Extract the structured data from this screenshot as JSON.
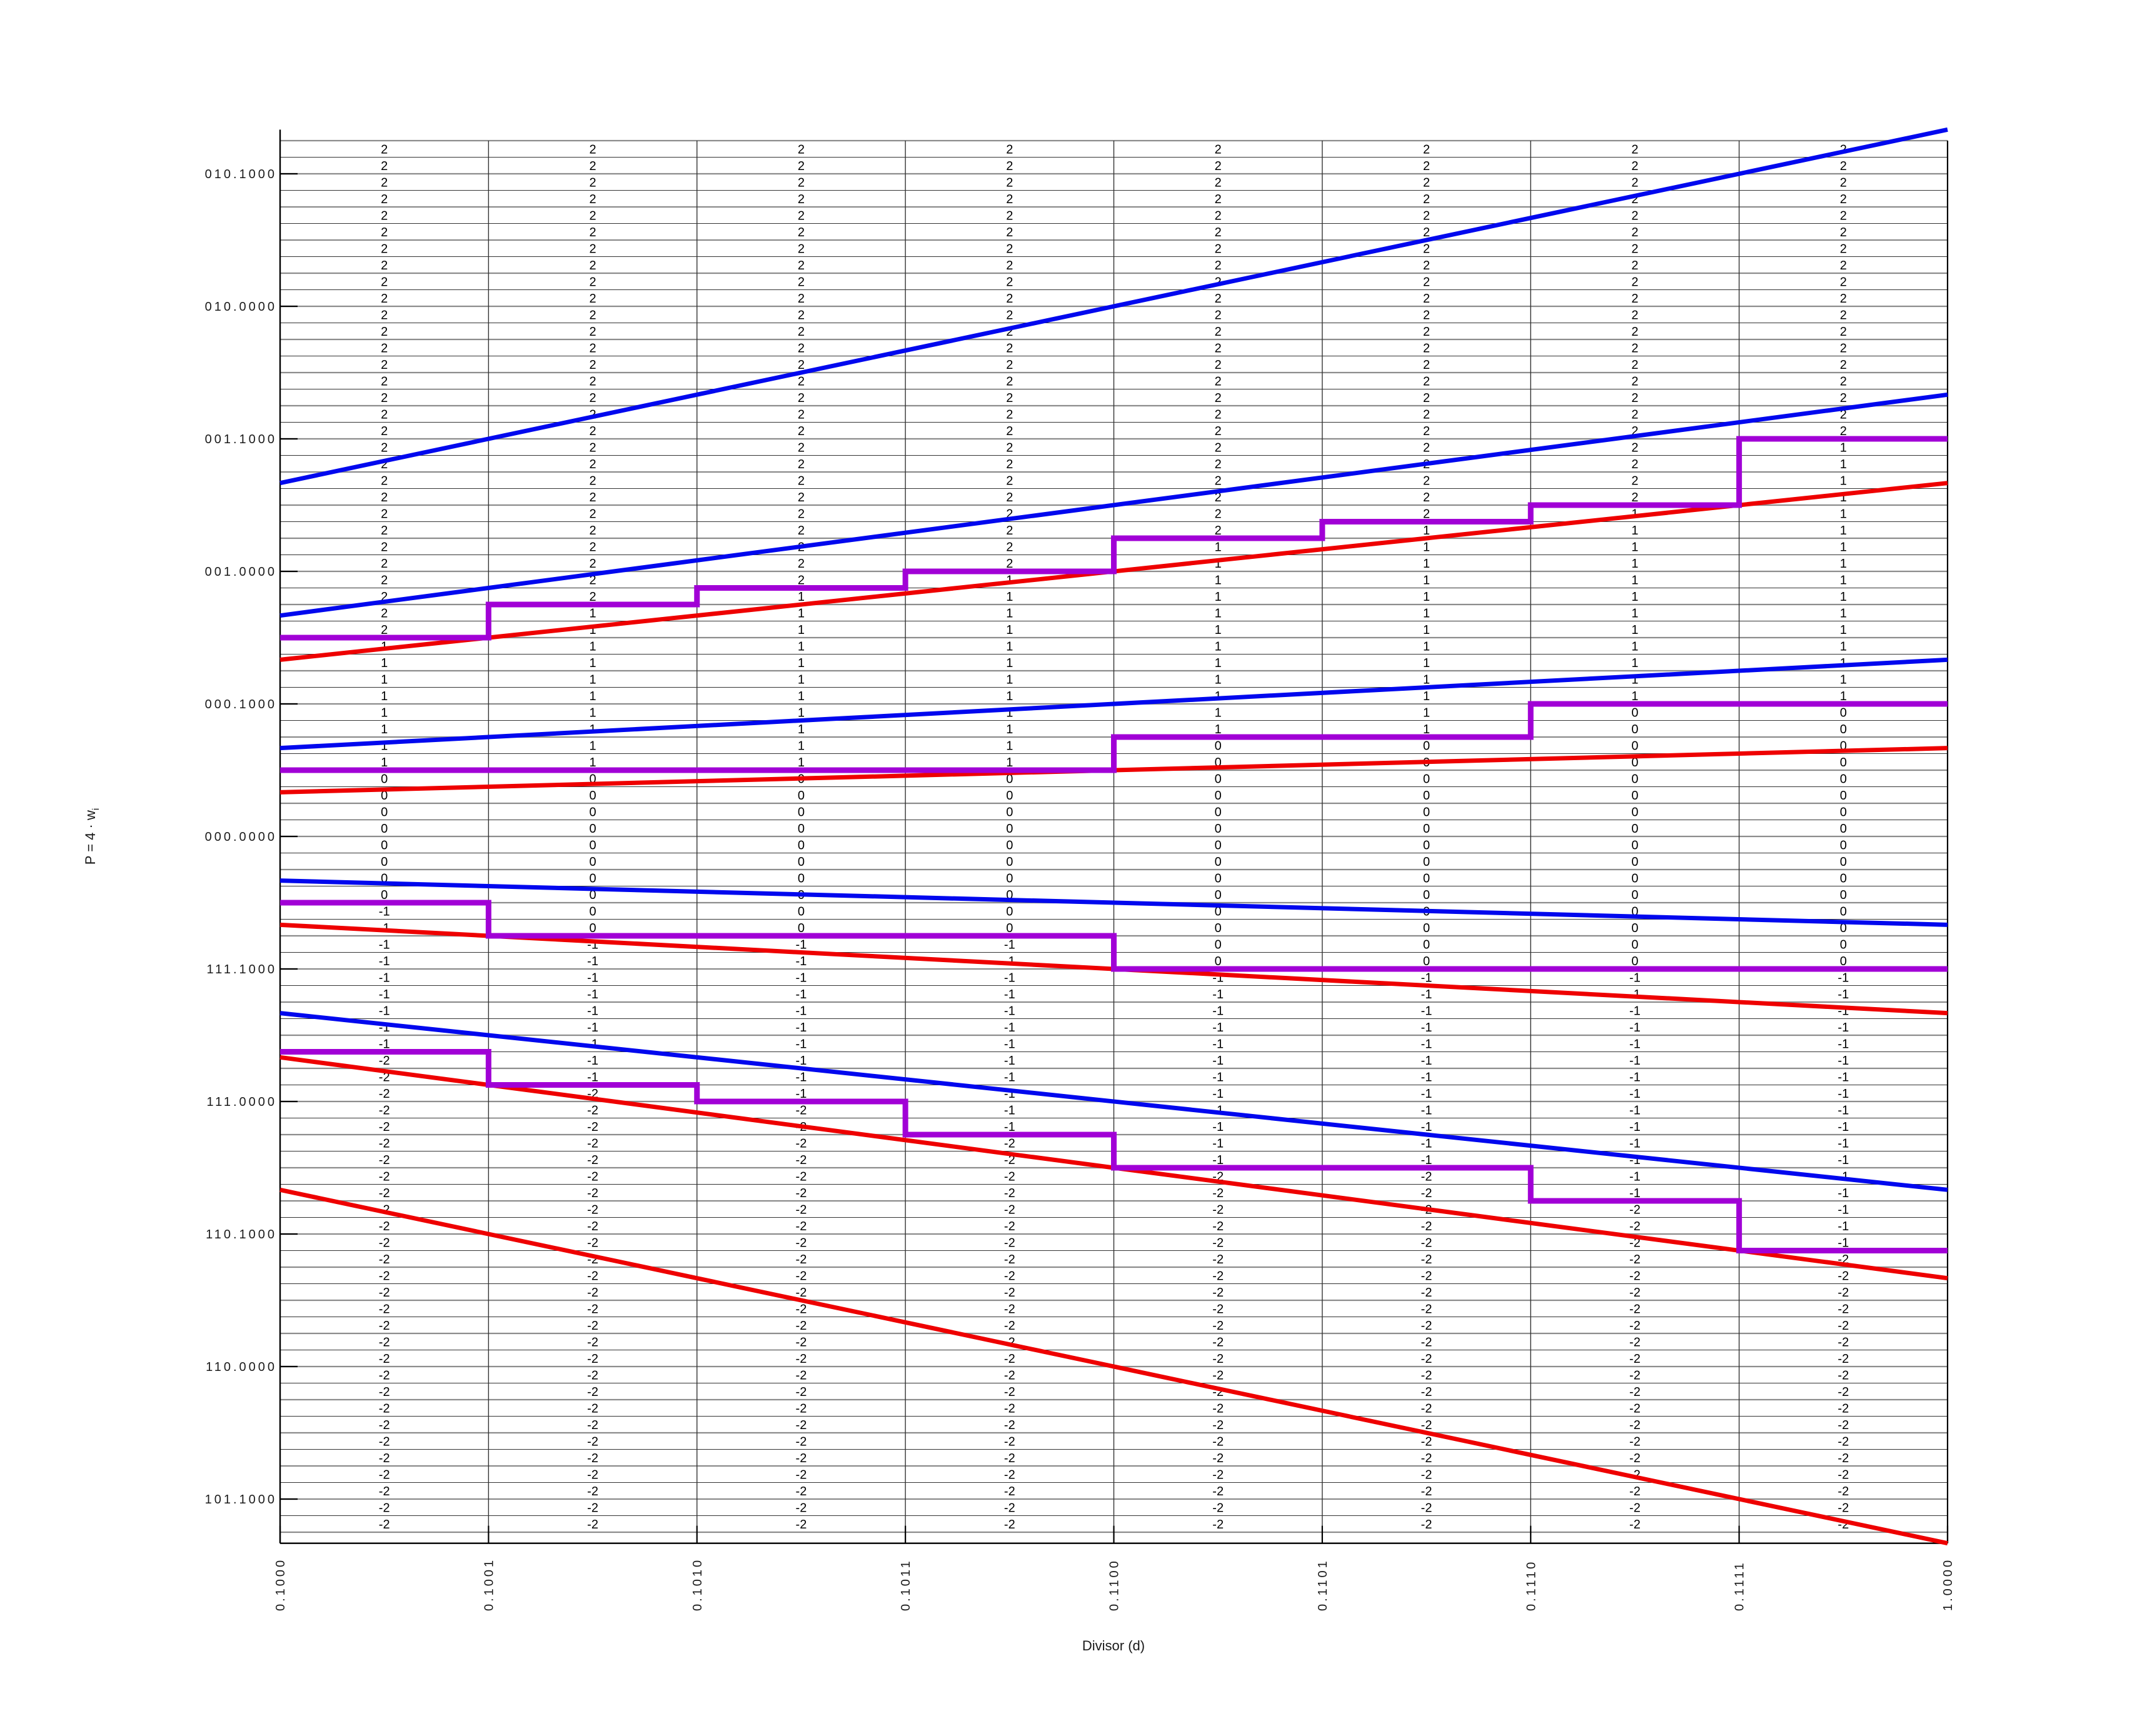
{
  "chart_data": {
    "type": "line",
    "description": "P-D diagram for radix-4 SRT division quotient digit selection: shifted partial remainder P versus divisor d, with digit selection bound lines, staircase selection thresholds and the selected quotient digit printed in every grid cell",
    "xlabel": "Divisor (d)",
    "ylabel_main": "P = 4 · w",
    "ylabel_sub": "i",
    "xlim": [
      0.5,
      1.0
    ],
    "ylim": [
      -2.6667,
      2.6667
    ],
    "grid_step": 0.0625,
    "x_ticks": [
      {
        "d": 0.5,
        "label": "0.1000"
      },
      {
        "d": 0.5625,
        "label": "0.1001"
      },
      {
        "d": 0.625,
        "label": "0.1010"
      },
      {
        "d": 0.6875,
        "label": "0.1011"
      },
      {
        "d": 0.75,
        "label": "0.1100"
      },
      {
        "d": 0.8125,
        "label": "0.1101"
      },
      {
        "d": 0.875,
        "label": "0.1110"
      },
      {
        "d": 0.9375,
        "label": "0.1111"
      },
      {
        "d": 1.0,
        "label": "1.0000"
      }
    ],
    "y_ticks": [
      {
        "p": 2.5,
        "label": "010.1000"
      },
      {
        "p": 2.0,
        "label": "010.0000"
      },
      {
        "p": 1.5,
        "label": "001.1000"
      },
      {
        "p": 1.0,
        "label": "001.0000"
      },
      {
        "p": 0.5,
        "label": "000.1000"
      },
      {
        "p": 0.0,
        "label": "000.0000"
      },
      {
        "p": -0.5,
        "label": "111.1000"
      },
      {
        "p": -1.0,
        "label": "111.0000"
      },
      {
        "p": -1.5,
        "label": "110.1000"
      },
      {
        "p": -2.0,
        "label": "110.0000"
      },
      {
        "p": -2.5,
        "label": "101.1000"
      }
    ],
    "upper_bound_lines": {
      "color": "#0008ee",
      "formula": "U_k(d) = (k + 2/3)·d for k = 2,1,0,-1,-2",
      "slopes": [
        2.66667,
        1.66667,
        0.66667,
        -0.33333,
        -1.33333
      ]
    },
    "lower_bound_lines": {
      "color": "#ee0000",
      "formula": "L_k(d) = (k - 2/3)·d for k = 2,1,0,-1,-2",
      "slopes": [
        1.33333,
        0.33333,
        -0.66667,
        -1.66667,
        -2.66667
      ]
    },
    "selection_staircases": {
      "color": "#a100d6",
      "column_edges_d": [
        0.5,
        0.5625,
        0.625,
        0.6875,
        0.75,
        0.8125,
        0.875,
        0.9375,
        1.0
      ],
      "thresholds_sixteenths": {
        "digit2_vs_1": [
          12,
          14,
          15,
          16,
          18,
          19,
          20,
          24
        ],
        "digit1_vs_0": [
          4,
          4,
          4,
          4,
          6,
          6,
          8,
          8
        ],
        "digit0_vs_minus1": [
          -4,
          -6,
          -6,
          -6,
          -8,
          -8,
          -8,
          -8
        ],
        "digitm1_vs_minus2": [
          -13,
          -15,
          -16,
          -18,
          -20,
          -20,
          -22,
          -25
        ]
      }
    },
    "cell_digits": {
      "possible_values": [
        2,
        1,
        0,
        -1,
        -2
      ],
      "row_lower_edge_sixteenths_min": -42,
      "row_lower_edge_sixteenths_max": 41,
      "rule": "a cell whose lower edge is E/16 in column c shows 2 if E>=digit2_vs_1[c], else 1 if E>=digit1_vs_0[c], else 0 if E>=digit0_vs_minus1[c], else -1 if E>=digitm1_vs_minus2[c], else -2"
    },
    "colors": {
      "background": "#ffffff",
      "axis": "#000000",
      "grid_major": "#8c8c8c",
      "grid_minor": "#333333",
      "digit_text": "#000000",
      "tick_text": "#1a1a1a"
    }
  }
}
